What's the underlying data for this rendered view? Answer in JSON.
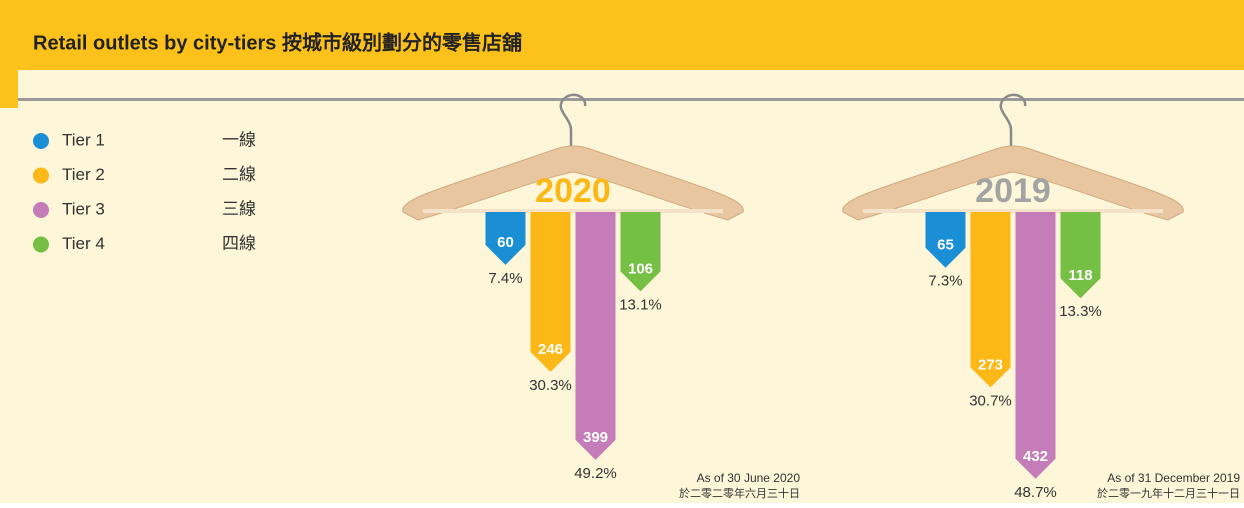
{
  "title": "Retail outlets by city-tiers 按城市級別劃分的零售店舖",
  "legend": [
    {
      "name": "Tier 1",
      "name_zh": "一線",
      "color": "#1a8fd6"
    },
    {
      "name": "Tier 2",
      "name_zh": "二線",
      "color": "#fbb817"
    },
    {
      "name": "Tier 3",
      "name_zh": "三線",
      "color": "#c47db8"
    },
    {
      "name": "Tier 4",
      "name_zh": "四線",
      "color": "#75bf44"
    }
  ],
  "chart_data": [
    {
      "type": "bar",
      "title": "2020",
      "title_color": "#fbb817",
      "categories": [
        "Tier 1",
        "Tier 2",
        "Tier 3",
        "Tier 4"
      ],
      "colors": [
        "#1a8fd6",
        "#fbb817",
        "#c47db8",
        "#75bf44"
      ],
      "values": [
        60,
        246,
        399,
        106
      ],
      "shares": [
        7.4,
        30.3,
        49.2,
        13.1
      ],
      "share_labels": [
        "7.4%",
        "30.3%",
        "49.2%",
        "13.1%"
      ],
      "ylim": [
        -32,
        440
      ],
      "note": "As of 30 June 2020",
      "note_zh": "於二零二零年六月三十日"
    },
    {
      "type": "bar",
      "title": "2019",
      "title_color": "#a3a3a3",
      "categories": [
        "Tier 1",
        "Tier 2",
        "Tier 3",
        "Tier 4"
      ],
      "colors": [
        "#1a8fd6",
        "#fbb817",
        "#c47db8",
        "#75bf44"
      ],
      "values": [
        65,
        273,
        432,
        118
      ],
      "shares": [
        7.3,
        30.7,
        48.7,
        13.3
      ],
      "share_labels": [
        "7.3%",
        "30.7%",
        "48.7%",
        "13.3%"
      ],
      "ylim": [
        -32,
        440
      ],
      "note": "As of 31 December 2019",
      "note_zh": "於二零一九年十二月三十一日"
    }
  ]
}
